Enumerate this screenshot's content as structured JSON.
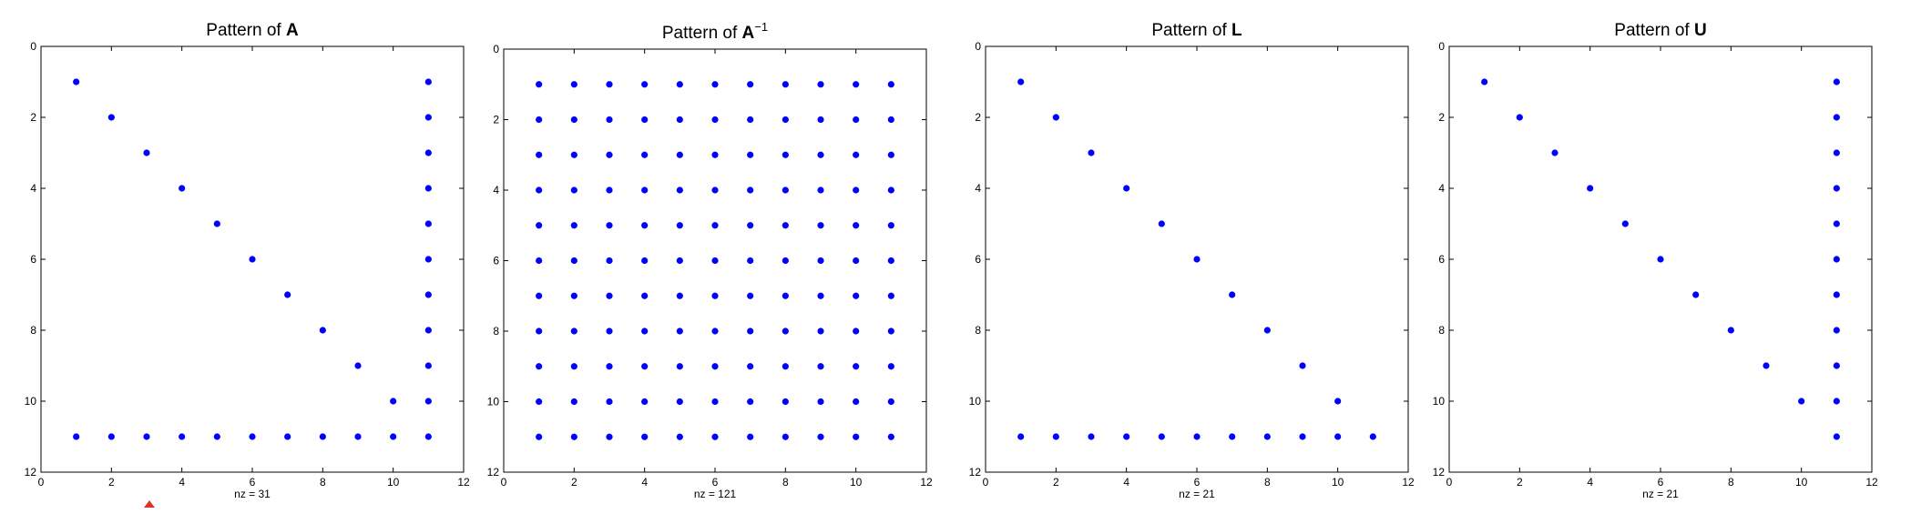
{
  "chart_data": [
    {
      "type": "scatter",
      "title_prefix": "Pattern of",
      "title_matrix": "A",
      "title_sup": "",
      "xlabel": "nz = 31",
      "xlim": [
        0,
        12
      ],
      "ylim": [
        0,
        12
      ],
      "xticks": [
        0,
        2,
        4,
        6,
        8,
        10,
        12
      ],
      "yticks": [
        0,
        2,
        4,
        6,
        8,
        10,
        12
      ],
      "y_reversed": true,
      "grid": false,
      "marker_color": "#0000ff",
      "pattern": "diag+lastrow+lastcol"
    },
    {
      "type": "scatter",
      "title_prefix": "Pattern of",
      "title_matrix": "A",
      "title_sup": "−1",
      "xlabel": "nz = 121",
      "xlim": [
        0,
        12
      ],
      "ylim": [
        0,
        12
      ],
      "xticks": [
        0,
        2,
        4,
        6,
        8,
        10,
        12
      ],
      "yticks": [
        0,
        2,
        4,
        6,
        8,
        10,
        12
      ],
      "y_reversed": true,
      "grid": false,
      "marker_color": "#0000ff",
      "pattern": "full"
    },
    {
      "type": "scatter",
      "title_prefix": "Pattern of",
      "title_matrix": "L",
      "title_sup": "",
      "xlabel": "nz = 21",
      "xlim": [
        0,
        12
      ],
      "ylim": [
        0,
        12
      ],
      "xticks": [
        0,
        2,
        4,
        6,
        8,
        10,
        12
      ],
      "yticks": [
        0,
        2,
        4,
        6,
        8,
        10,
        12
      ],
      "y_reversed": true,
      "grid": false,
      "marker_color": "#0000ff",
      "pattern": "diag+lastrow"
    },
    {
      "type": "scatter",
      "title_prefix": "Pattern of",
      "title_matrix": "U",
      "title_sup": "",
      "xlabel": "nz = 21",
      "xlim": [
        0,
        12
      ],
      "ylim": [
        0,
        12
      ],
      "xticks": [
        0,
        2,
        4,
        6,
        8,
        10,
        12
      ],
      "yticks": [
        0,
        2,
        4,
        6,
        8,
        10,
        12
      ],
      "y_reversed": true,
      "grid": false,
      "marker_color": "#0000ff",
      "pattern": "diag+lastcol"
    }
  ]
}
